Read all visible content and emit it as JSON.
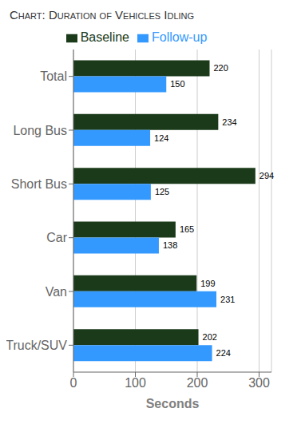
{
  "chart_data": {
    "type": "bar",
    "title": "Chart: Duration of Vehicles Idling",
    "orientation": "horizontal",
    "categories": [
      "Total",
      "Long Bus",
      "Short Bus",
      "Car",
      "Van",
      "Truck/SUV"
    ],
    "series": [
      {
        "name": "Baseline",
        "color": "#1a3a1a",
        "values": [
          220,
          234,
          294,
          165,
          199,
          202
        ]
      },
      {
        "name": "Follow-up",
        "color": "#3399ff",
        "values": [
          150,
          124,
          125,
          138,
          231,
          224
        ]
      }
    ],
    "xlabel": "Seconds",
    "xlim": [
      0,
      320
    ],
    "xticks": [
      0,
      100,
      200,
      300
    ],
    "grid": true,
    "legend": "top",
    "data_labels": true
  }
}
